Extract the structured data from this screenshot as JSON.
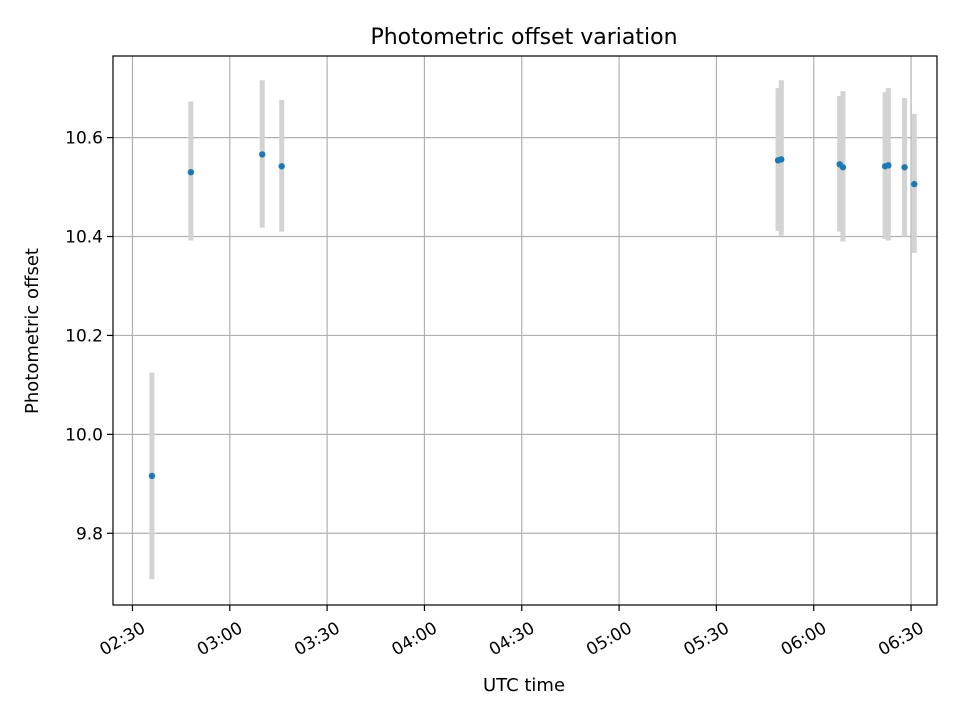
{
  "chart_data": {
    "type": "scatter",
    "title": "Photometric offset variation",
    "xlabel": "UTC time",
    "ylabel": "Photometric offset",
    "xlim": [
      "02:24",
      "06:38"
    ],
    "ylim": [
      9.655,
      10.765
    ],
    "x_ticks": [
      "02:30",
      "03:00",
      "03:30",
      "04:00",
      "04:30",
      "05:00",
      "05:30",
      "06:00",
      "06:30"
    ],
    "y_ticks": [
      9.8,
      10.0,
      10.2,
      10.4,
      10.6
    ],
    "y_tick_labels": [
      "9.8",
      "10.0",
      "10.2",
      "10.4",
      "10.6"
    ],
    "grid": true,
    "colors": {
      "points": "#1f77b4",
      "errorbars": "#d3d3d3",
      "grid": "#b0b0b0"
    },
    "points": [
      {
        "x": "02:36",
        "y": 9.916,
        "err_low": 9.707,
        "err_high": 10.125
      },
      {
        "x": "02:48",
        "y": 10.53,
        "err_low": 10.392,
        "err_high": 10.673
      },
      {
        "x": "03:10",
        "y": 10.566,
        "err_low": 10.418,
        "err_high": 10.716
      },
      {
        "x": "03:16",
        "y": 10.542,
        "err_low": 10.41,
        "err_high": 10.676
      },
      {
        "x": "05:49",
        "y": 10.554,
        "err_low": 10.411,
        "err_high": 10.7
      },
      {
        "x": "05:50",
        "y": 10.556,
        "err_low": 10.402,
        "err_high": 10.716
      },
      {
        "x": "06:08",
        "y": 10.546,
        "err_low": 10.41,
        "err_high": 10.684
      },
      {
        "x": "06:09",
        "y": 10.54,
        "err_low": 10.39,
        "err_high": 10.694
      },
      {
        "x": "06:22",
        "y": 10.542,
        "err_low": 10.395,
        "err_high": 10.692
      },
      {
        "x": "06:23",
        "y": 10.544,
        "err_low": 10.392,
        "err_high": 10.7
      },
      {
        "x": "06:28",
        "y": 10.54,
        "err_low": 10.4,
        "err_high": 10.68
      },
      {
        "x": "06:31",
        "y": 10.506,
        "err_low": 10.367,
        "err_high": 10.648
      }
    ]
  }
}
